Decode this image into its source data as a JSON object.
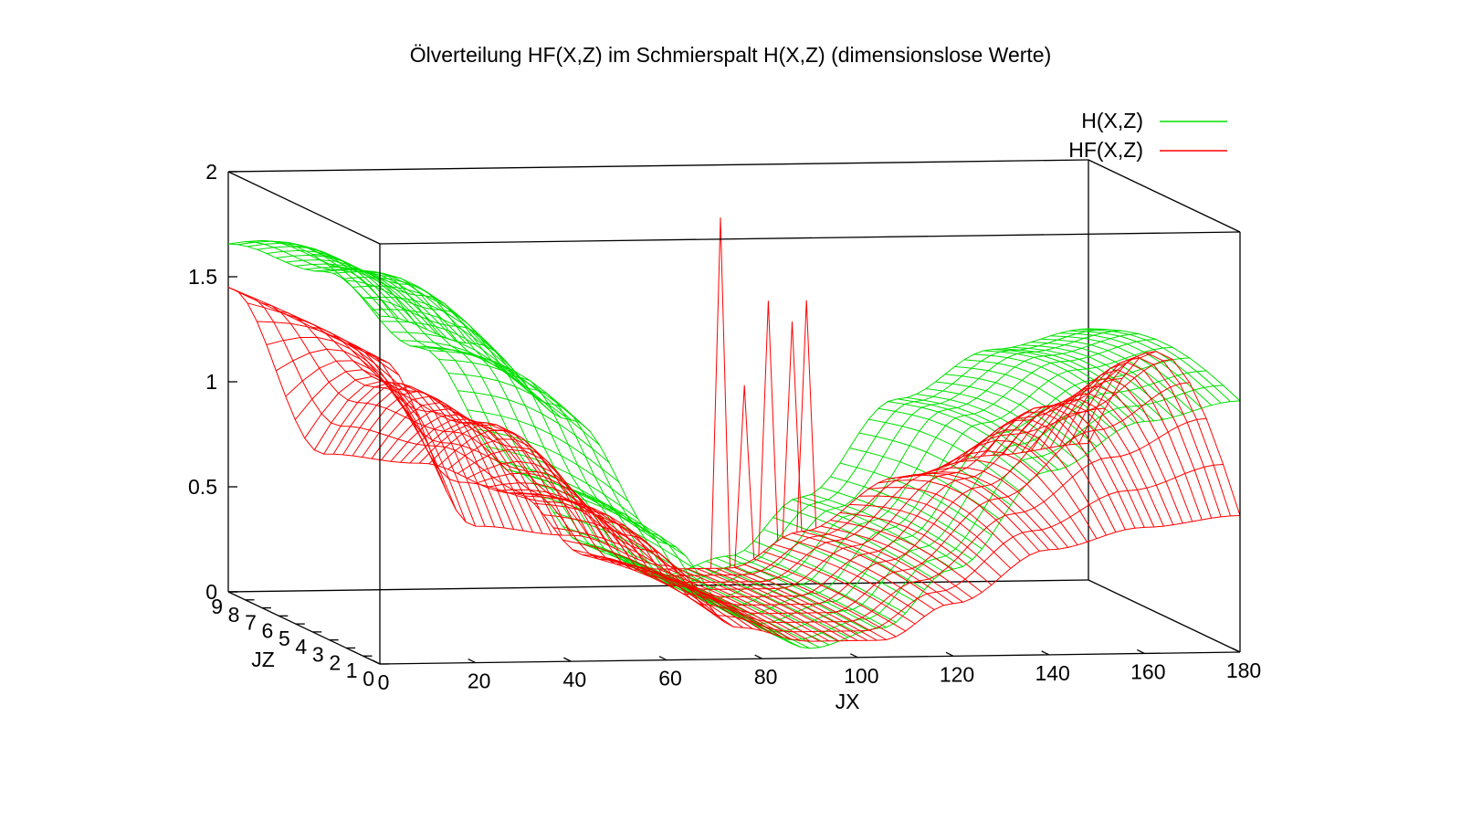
{
  "chart_data": {
    "type": "surface3d",
    "title": "Ölverteilung HF(X,Z) im Schmierspalt H(X,Z) (dimensionslose Werte)",
    "xlabel": "JX",
    "ylabel": "JZ",
    "zlabel": "",
    "xlim": [
      0,
      180
    ],
    "ylim": [
      0,
      9
    ],
    "zlim": [
      0,
      2
    ],
    "x_ticks": [
      "0",
      "20",
      "40",
      "60",
      "80",
      "100",
      "120",
      "140",
      "160",
      "180"
    ],
    "y_ticks": [
      "0",
      "1",
      "2",
      "3",
      "4",
      "5",
      "6",
      "7",
      "8",
      "9"
    ],
    "z_ticks": [
      "0",
      "0.5",
      "1",
      "1.5",
      "2"
    ],
    "legend_position": "top-right",
    "series": [
      {
        "name": "H(X,Z)",
        "color": "#00e000",
        "profile": {
          "x": [
            0,
            20,
            40,
            60,
            75,
            90,
            105,
            120,
            140,
            160,
            180
          ],
          "z": [
            1.8,
            1.65,
            1.25,
            0.6,
            0.22,
            0.05,
            0.15,
            0.45,
            0.95,
            1.2,
            1.3
          ]
        }
      },
      {
        "name": "HF(X,Z)",
        "color": "#ff0000",
        "profile": {
          "x": [
            0,
            20,
            40,
            60,
            75,
            90,
            105,
            120,
            140,
            160,
            180
          ],
          "z_edge_high": [
            1.45,
            1.15,
            0.95,
            0.55,
            0.2,
            0.1,
            0.1,
            0.3,
            0.65,
            1.0,
            1.25
          ],
          "z_edge_low": [
            1.45,
            0.65,
            0.6,
            0.45,
            0.15,
            0.08,
            0.08,
            0.25,
            0.5,
            0.6,
            0.65
          ]
        },
        "spikes": [
          {
            "x": 103,
            "y": 9,
            "z": 1.75
          },
          {
            "x": 113,
            "y": 9,
            "z": 1.35
          },
          {
            "x": 118,
            "y": 9,
            "z": 1.25
          },
          {
            "x": 121,
            "y": 9,
            "z": 1.35
          },
          {
            "x": 108,
            "y": 9,
            "z": 0.95
          }
        ]
      }
    ]
  }
}
